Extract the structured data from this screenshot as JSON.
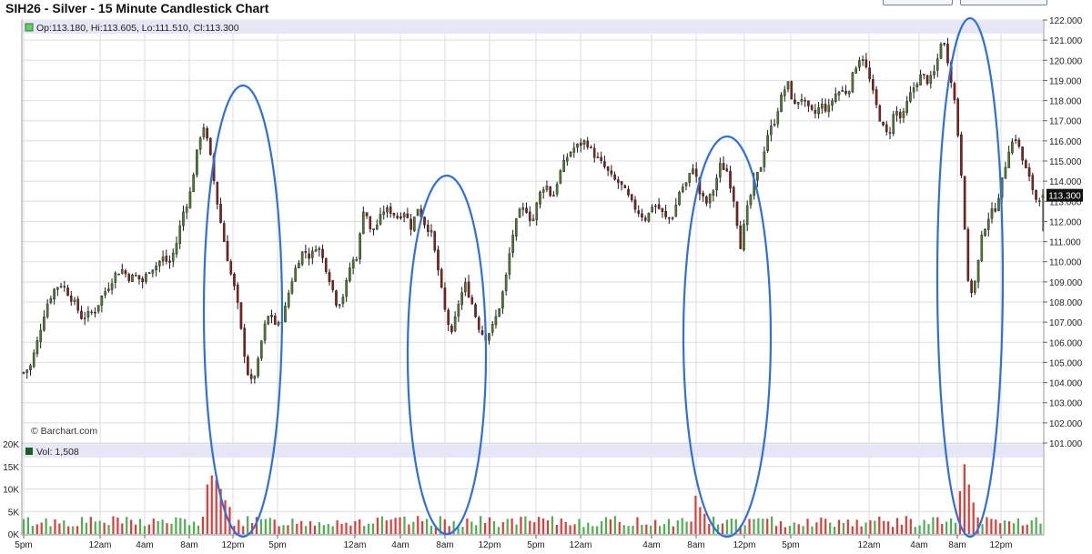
{
  "header": {
    "title": "SIH26 - Silver - 15 Minute Candlestick Chart"
  },
  "price_panel": {
    "ohlc_label": "Op:113.180, Hi:113.605, Lo:111.510, Cl:113.300",
    "last_price_badge": "113.300",
    "watermark": "© Barchart.com"
  },
  "volume_panel": {
    "label": "Vol: 1,508"
  },
  "colors": {
    "up_candle": "#4e7a2f",
    "down_candle": "#8a1c1c",
    "wick": "#1a1a1a",
    "volume_up": "#4caf50",
    "volume_down": "#e53935",
    "highlight_ellipse": "#2f6fe0",
    "info_bar": "#e6e6f6",
    "grid": "#dddddd",
    "price_badge": "#111111"
  },
  "chart_data": [
    {
      "type": "candlestick",
      "title": "SIH26 - Silver - 15 Minute Candlestick Chart",
      "ylim": [
        101.0,
        122.0
      ],
      "y_ticks": [
        "101.000",
        "102.000",
        "103.000",
        "104.000",
        "105.000",
        "106.000",
        "107.000",
        "108.000",
        "109.000",
        "110.000",
        "111.000",
        "112.000",
        "113.000",
        "114.000",
        "115.000",
        "116.000",
        "117.000",
        "118.000",
        "119.000",
        "120.000",
        "121.000",
        "122.000"
      ],
      "x_ticks": [
        "5pm",
        "12am",
        "4am",
        "8am",
        "12pm",
        "5pm",
        "12am",
        "4am",
        "8am",
        "12pm",
        "5pm",
        "12am",
        "4am",
        "8am",
        "12pm",
        "5pm",
        "12am",
        "4am",
        "8am",
        "12pm"
      ],
      "grid": true,
      "last": {
        "open": 113.18,
        "high": 113.605,
        "low": 111.51,
        "close": 113.3
      },
      "close_path": [
        [
          0,
          104.5
        ],
        [
          3,
          104.8
        ],
        [
          6,
          106.0
        ],
        [
          10,
          107.8
        ],
        [
          14,
          108.7
        ],
        [
          17,
          108.9
        ],
        [
          20,
          108.4
        ],
        [
          23,
          107.9
        ],
        [
          26,
          107.2
        ],
        [
          29,
          107.4
        ],
        [
          32,
          107.6
        ],
        [
          35,
          108.3
        ],
        [
          38,
          108.8
        ],
        [
          41,
          109.4
        ],
        [
          44,
          109.6
        ],
        [
          47,
          109.2
        ],
        [
          50,
          109.3
        ],
        [
          53,
          109.0
        ],
        [
          56,
          109.6
        ],
        [
          59,
          109.8
        ],
        [
          62,
          110.2
        ],
        [
          65,
          109.9
        ],
        [
          68,
          110.8
        ],
        [
          71,
          112.4
        ],
        [
          74,
          113.2
        ],
        [
          77,
          115.2
        ],
        [
          80,
          116.9
        ],
        [
          83,
          115.5
        ],
        [
          86,
          113.2
        ],
        [
          89,
          111.3
        ],
        [
          92,
          109.6
        ],
        [
          95,
          108.3
        ],
        [
          98,
          105.8
        ],
        [
          101,
          103.9
        ],
        [
          104,
          104.6
        ],
        [
          107,
          106.6
        ],
        [
          110,
          107.5
        ],
        [
          113,
          106.7
        ],
        [
          116,
          107.3
        ],
        [
          119,
          108.8
        ],
        [
          122,
          109.9
        ],
        [
          125,
          110.6
        ],
        [
          128,
          110.2
        ],
        [
          131,
          110.9
        ],
        [
          134,
          110.0
        ],
        [
          137,
          109.0
        ],
        [
          140,
          107.8
        ],
        [
          143,
          108.4
        ],
        [
          146,
          109.9
        ],
        [
          149,
          110.3
        ],
        [
          152,
          112.9
        ],
        [
          155,
          111.4
        ],
        [
          158,
          111.9
        ],
        [
          161,
          112.6
        ],
        [
          164,
          112.5
        ],
        [
          167,
          112.2
        ],
        [
          170,
          112.5
        ],
        [
          173,
          111.7
        ],
        [
          176,
          112.7
        ],
        [
          179,
          111.9
        ],
        [
          182,
          111.4
        ],
        [
          185,
          109.6
        ],
        [
          188,
          107.6
        ],
        [
          191,
          106.3
        ],
        [
          194,
          107.9
        ],
        [
          197,
          108.9
        ],
        [
          200,
          108.0
        ],
        [
          203,
          106.8
        ],
        [
          206,
          106.2
        ],
        [
          209,
          106.7
        ],
        [
          212,
          107.6
        ],
        [
          215,
          109.0
        ],
        [
          218,
          111.2
        ],
        [
          221,
          112.4
        ],
        [
          224,
          112.7
        ],
        [
          227,
          111.9
        ],
        [
          230,
          113.3
        ],
        [
          233,
          113.9
        ],
        [
          236,
          113.1
        ],
        [
          239,
          114.3
        ],
        [
          242,
          115.1
        ],
        [
          245,
          115.6
        ],
        [
          248,
          115.8
        ],
        [
          251,
          116.0
        ],
        [
          254,
          115.4
        ],
        [
          257,
          115.0
        ],
        [
          260,
          114.6
        ],
        [
          263,
          114.1
        ],
        [
          266,
          113.9
        ],
        [
          269,
          113.4
        ],
        [
          272,
          112.8
        ],
        [
          275,
          112.4
        ],
        [
          278,
          112.1
        ],
        [
          281,
          112.9
        ],
        [
          284,
          112.6
        ],
        [
          287,
          112.1
        ],
        [
          290,
          112.3
        ],
        [
          293,
          113.6
        ],
        [
          296,
          113.9
        ],
        [
          299,
          114.8
        ],
        [
          302,
          113.3
        ],
        [
          305,
          112.9
        ],
        [
          308,
          113.6
        ],
        [
          311,
          114.8
        ],
        [
          314,
          114.5
        ],
        [
          317,
          113.1
        ],
        [
          320,
          110.8
        ],
        [
          323,
          112.6
        ],
        [
          326,
          113.9
        ],
        [
          329,
          114.7
        ],
        [
          332,
          116.3
        ],
        [
          335,
          116.9
        ],
        [
          338,
          118.1
        ],
        [
          341,
          118.9
        ],
        [
          344,
          117.7
        ],
        [
          347,
          118.2
        ],
        [
          350,
          117.6
        ],
        [
          353,
          117.3
        ],
        [
          356,
          117.8
        ],
        [
          359,
          117.5
        ],
        [
          362,
          118.3
        ],
        [
          365,
          118.5
        ],
        [
          368,
          118.4
        ],
        [
          371,
          119.6
        ],
        [
          374,
          120.3
        ],
        [
          377,
          119.3
        ],
        [
          380,
          118.0
        ],
        [
          383,
          116.8
        ],
        [
          386,
          116.2
        ],
        [
          389,
          117.6
        ],
        [
          392,
          117.0
        ],
        [
          395,
          118.1
        ],
        [
          398,
          118.8
        ],
        [
          401,
          119.3
        ],
        [
          404,
          118.9
        ],
        [
          407,
          119.5
        ],
        [
          410,
          121.2
        ],
        [
          413,
          119.8
        ],
        [
          416,
          117.7
        ],
        [
          419,
          113.9
        ],
        [
          422,
          108.2
        ],
        [
          425,
          109.1
        ],
        [
          428,
          111.4
        ],
        [
          431,
          112.3
        ],
        [
          434,
          112.7
        ],
        [
          437,
          114.1
        ],
        [
          440,
          115.7
        ],
        [
          443,
          116.2
        ],
        [
          446,
          115.0
        ],
        [
          449,
          114.1
        ],
        [
          452,
          113.1
        ],
        [
          455,
          113.3
        ]
      ]
    },
    {
      "type": "bar",
      "title": "Vol: 1,508",
      "ylim": [
        0,
        20000
      ],
      "y_ticks": [
        "0K",
        "5K",
        "10K",
        "15K",
        "20K"
      ],
      "last_volume": 1508,
      "spikes": [
        [
          82,
          11000
        ],
        [
          84,
          13000
        ],
        [
          86,
          12000
        ],
        [
          88,
          10000
        ],
        [
          90,
          7500
        ],
        [
          92,
          6000
        ],
        [
          187,
          6800
        ],
        [
          189,
          7200
        ],
        [
          191,
          6500
        ],
        [
          193,
          5500
        ],
        [
          300,
          8500
        ],
        [
          302,
          6000
        ],
        [
          304,
          4500
        ],
        [
          418,
          9500
        ],
        [
          420,
          15500
        ],
        [
          422,
          11000
        ],
        [
          424,
          7000
        ]
      ],
      "baseline_range": [
        1500,
        4000
      ]
    }
  ]
}
